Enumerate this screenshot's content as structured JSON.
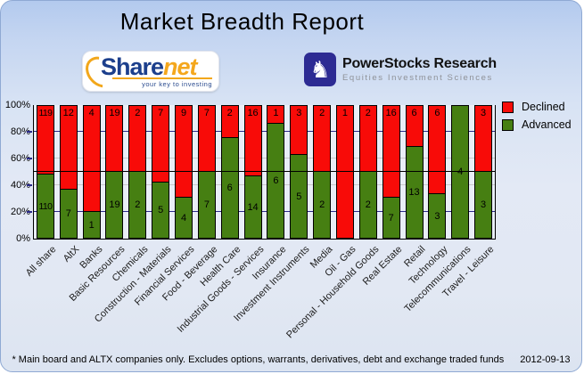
{
  "header": {
    "title": "Market Breadth Report"
  },
  "logos": {
    "sharenet": {
      "brand_primary": "Share",
      "brand_secondary": "net",
      "tagline": "your key to investing",
      "accent_color": "#f2a71b",
      "primary_color": "#1c3f8c"
    },
    "powerstocks": {
      "brand": "PowerStocks Research",
      "subtitle": "Equities Investment Sciences",
      "icon": "knight-chess-icon",
      "icon_bg": "#2d2b93",
      "knight_glyph": "♞"
    }
  },
  "chart_data": {
    "type": "bar",
    "stacked": true,
    "percent_mode": "share-of-total",
    "title": "Market Breadth Report",
    "categories": [
      "All share",
      "AltX",
      "Banks",
      "Basic Resources",
      "Chemicals",
      "Construction - Materials",
      "Financial Services",
      "Food - Beverage",
      "Health Care",
      "Industrial Goods - Services",
      "Insurance",
      "Investment Instruments",
      "Media",
      "Oil - Gas",
      "Personal - Household Goods",
      "Real Estate",
      "Retail",
      "Technology",
      "Telecommunications",
      "Travel - Leisure"
    ],
    "series": [
      {
        "name": "Declined",
        "color": "#f80b08",
        "values": [
          119,
          12,
          4,
          19,
          2,
          7,
          9,
          7,
          2,
          16,
          1,
          3,
          2,
          1,
          2,
          16,
          6,
          6,
          0,
          3
        ]
      },
      {
        "name": "Advanced",
        "color": "#467f12",
        "values": [
          110,
          7,
          1,
          19,
          2,
          5,
          4,
          7,
          6,
          14,
          6,
          5,
          2,
          0,
          2,
          7,
          13,
          3,
          4,
          3
        ]
      }
    ],
    "value_axis": {
      "min": 0,
      "max": 100,
      "ticks": [
        "100%",
        "80%",
        "60%",
        "40%",
        "20%",
        "0%"
      ]
    },
    "reference_line_pct": 50,
    "grid": {
      "navy_lines_pct": [
        20,
        80
      ],
      "gray_lines_pct": [
        40,
        60
      ],
      "navy_color": "#2c2c8a",
      "gray_color": "#c9c9c9"
    },
    "legend_position": "top-right"
  },
  "footer": {
    "note": "* Main board and ALTX companies only. Excludes options, warrants, derivatives, debt and exchange traded funds",
    "date": "2012-09-13"
  }
}
